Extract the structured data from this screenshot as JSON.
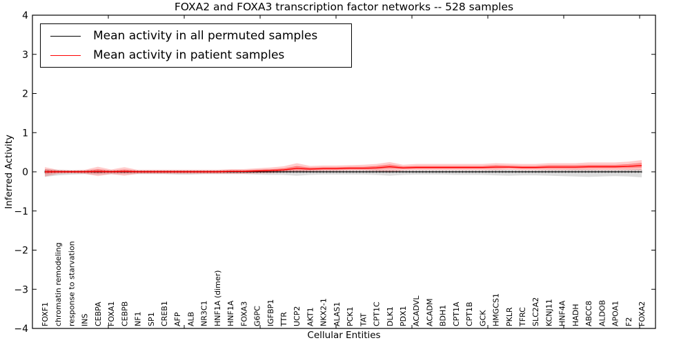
{
  "title": "FOXA2 and FOXA3 transcription factor networks -- 528 samples",
  "legend": {
    "items": [
      {
        "label": "Mean activity in all permuted samples",
        "color": "#000000"
      },
      {
        "label": "Mean activity in patient samples",
        "color": "#ff0000"
      }
    ]
  },
  "chart_data": {
    "type": "line",
    "title": "FOXA2 and FOXA3 transcription factor networks -- 528 samples",
    "xlabel": "Cellular Entities",
    "ylabel": "Inferred Activity",
    "ylim": [
      -4,
      4
    ],
    "yticks": [
      4,
      3,
      2,
      1,
      0,
      -1,
      -2,
      -3,
      -4
    ],
    "yticklabels": [
      "4",
      "3",
      "2",
      "1",
      "0",
      "−1",
      "−2",
      "−3",
      "−4"
    ],
    "grid": false,
    "legend_position": "upper left",
    "categories": [
      "FOXF1",
      "chromatin remodeling",
      "response to starvation",
      "INS",
      "CEBPA",
      "FOXA1",
      "CEBPB",
      "NF1",
      "SP1",
      "CREB1",
      "AFP",
      "ALB",
      "NR3C1",
      "HNF1A (dimer)",
      "HNF1A",
      "FOXA3",
      "G6PC",
      "IGFBP1",
      "TTR",
      "UCP2",
      "AKT1",
      "NKX2-1",
      "ALAS1",
      "PCK1",
      "TAT",
      "CPT1C",
      "DLK1",
      "PDX1",
      "ACADVL",
      "ACADM",
      "BDH1",
      "CPT1A",
      "CPT1B",
      "GCK",
      "HMGCS1",
      "PKLR",
      "TFRC",
      "SLC2A2",
      "KCNJ11",
      "HNF4A",
      "HADH",
      "ABCC8",
      "ALDOB",
      "APOA1",
      "F2",
      "FOXA2"
    ],
    "series": [
      {
        "name": "Mean activity in all permuted samples",
        "color": "#000000",
        "values": [
          0,
          0,
          0,
          0,
          0,
          0,
          0,
          0,
          0,
          0,
          0,
          0,
          0,
          0,
          0,
          0,
          0,
          0,
          0,
          0,
          0,
          0,
          0,
          0,
          0,
          0,
          0,
          0,
          0,
          0,
          0,
          0,
          0,
          0,
          0,
          0,
          0,
          0,
          0,
          0,
          0,
          0,
          0,
          0,
          0,
          0
        ]
      },
      {
        "name": "Mean activity in patient samples",
        "color": "#ff0000",
        "values": [
          0.0,
          0.0,
          0.0,
          0.0,
          0.01,
          0.0,
          0.01,
          0.0,
          0.0,
          0.0,
          0.0,
          0.0,
          0.0,
          0.0,
          0.01,
          0.01,
          0.02,
          0.03,
          0.05,
          0.09,
          0.07,
          0.08,
          0.08,
          0.09,
          0.09,
          0.1,
          0.13,
          0.1,
          0.11,
          0.11,
          0.11,
          0.11,
          0.11,
          0.11,
          0.12,
          0.12,
          0.11,
          0.11,
          0.12,
          0.12,
          0.12,
          0.13,
          0.13,
          0.13,
          0.14,
          0.16
        ]
      }
    ],
    "bands": [
      {
        "name": "permuted-samples-range",
        "color": "rgba(130,130,130,0.28)",
        "upper": [
          0.07,
          0.05,
          0.04,
          0.04,
          0.05,
          0.04,
          0.04,
          0.04,
          0.04,
          0.04,
          0.04,
          0.04,
          0.04,
          0.04,
          0.04,
          0.04,
          0.04,
          0.05,
          0.05,
          0.05,
          0.04,
          0.04,
          0.04,
          0.04,
          0.04,
          0.05,
          0.05,
          0.04,
          0.04,
          0.04,
          0.04,
          0.04,
          0.04,
          0.04,
          0.05,
          0.05,
          0.04,
          0.04,
          0.05,
          0.05,
          0.06,
          0.06,
          0.05,
          0.05,
          0.06,
          0.07
        ],
        "lower": [
          -0.13,
          -0.09,
          -0.07,
          -0.06,
          -0.07,
          -0.06,
          -0.06,
          -0.06,
          -0.06,
          -0.06,
          -0.07,
          -0.07,
          -0.06,
          -0.06,
          -0.06,
          -0.06,
          -0.07,
          -0.08,
          -0.08,
          -0.1,
          -0.08,
          -0.07,
          -0.07,
          -0.07,
          -0.07,
          -0.08,
          -0.1,
          -0.08,
          -0.07,
          -0.07,
          -0.07,
          -0.08,
          -0.08,
          -0.08,
          -0.09,
          -0.1,
          -0.09,
          -0.09,
          -0.1,
          -0.11,
          -0.12,
          -0.13,
          -0.12,
          -0.11,
          -0.12,
          -0.14
        ]
      },
      {
        "name": "patient-samples-outer-band",
        "color": "rgba(255,0,0,0.20)",
        "upper": [
          0.12,
          0.05,
          0.04,
          0.05,
          0.13,
          0.06,
          0.12,
          0.05,
          0.05,
          0.05,
          0.05,
          0.05,
          0.05,
          0.05,
          0.07,
          0.07,
          0.09,
          0.11,
          0.14,
          0.22,
          0.15,
          0.16,
          0.16,
          0.17,
          0.18,
          0.2,
          0.25,
          0.18,
          0.2,
          0.2,
          0.2,
          0.2,
          0.2,
          0.2,
          0.22,
          0.21,
          0.2,
          0.2,
          0.22,
          0.22,
          0.22,
          0.24,
          0.24,
          0.24,
          0.26,
          0.3
        ],
        "lower": [
          -0.12,
          -0.05,
          -0.04,
          -0.05,
          -0.11,
          -0.06,
          -0.1,
          -0.05,
          -0.05,
          -0.05,
          -0.05,
          -0.05,
          -0.05,
          -0.05,
          -0.05,
          -0.05,
          -0.04,
          -0.03,
          -0.01,
          -0.01,
          0.01,
          0.02,
          0.02,
          0.03,
          0.03,
          0.02,
          -0.02,
          0.03,
          0.04,
          0.04,
          0.04,
          0.04,
          0.04,
          0.04,
          0.04,
          0.05,
          0.04,
          0.04,
          0.04,
          0.04,
          0.04,
          0.04,
          0.04,
          0.04,
          0.04,
          0.04
        ]
      },
      {
        "name": "patient-samples-inner-band",
        "color": "rgba(255,0,0,0.28)",
        "upper": [
          0.05,
          0.02,
          0.02,
          0.02,
          0.06,
          0.02,
          0.05,
          0.02,
          0.02,
          0.02,
          0.02,
          0.02,
          0.02,
          0.02,
          0.03,
          0.03,
          0.05,
          0.06,
          0.08,
          0.14,
          0.1,
          0.11,
          0.11,
          0.12,
          0.12,
          0.14,
          0.18,
          0.13,
          0.14,
          0.14,
          0.14,
          0.14,
          0.14,
          0.14,
          0.16,
          0.15,
          0.14,
          0.14,
          0.16,
          0.16,
          0.16,
          0.17,
          0.17,
          0.17,
          0.19,
          0.22
        ],
        "lower": [
          -0.05,
          -0.02,
          -0.02,
          -0.02,
          -0.04,
          -0.02,
          -0.03,
          -0.02,
          -0.02,
          -0.02,
          -0.02,
          -0.02,
          -0.02,
          -0.02,
          -0.01,
          -0.01,
          -0.01,
          0.0,
          0.02,
          0.04,
          0.04,
          0.05,
          0.05,
          0.06,
          0.06,
          0.06,
          0.08,
          0.07,
          0.08,
          0.08,
          0.08,
          0.08,
          0.08,
          0.08,
          0.08,
          0.09,
          0.08,
          0.08,
          0.08,
          0.08,
          0.08,
          0.09,
          0.09,
          0.09,
          0.09,
          0.1
        ]
      }
    ]
  }
}
